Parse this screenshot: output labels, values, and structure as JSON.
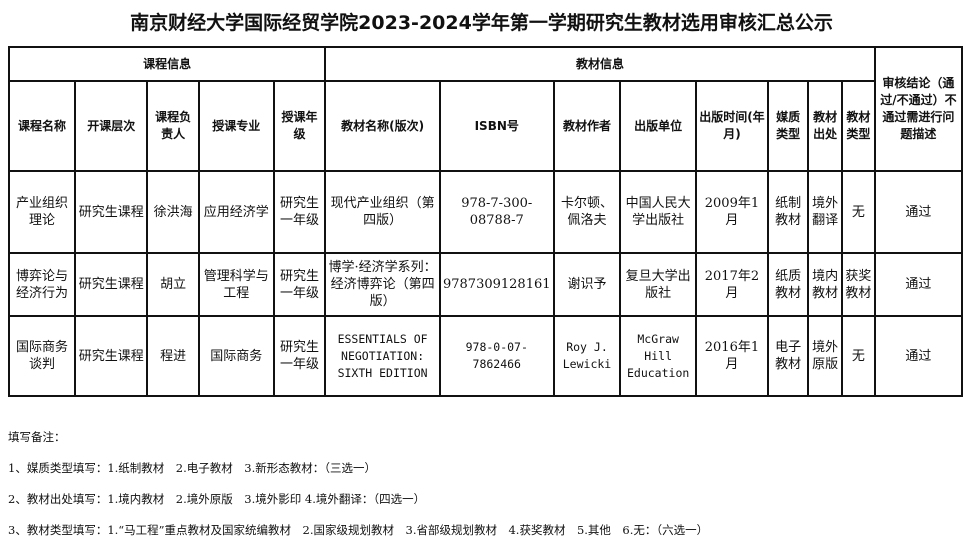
{
  "title": "南京财经大学国际经贸学院2023-2024学年第一学期研究生教材选用审核汇总公示",
  "groups": {
    "course": "课程信息",
    "textbook": "教材信息",
    "review": "审核结论（通过/不通过）不通过需进行问题描述"
  },
  "headers": [
    "课程名称",
    "开课层次",
    "课程负责人",
    "授课专业",
    "授课年级",
    "教材名称(版次)",
    "ISBN号",
    "教材作者",
    "出版单位",
    "出版时间(年月)",
    "媒质类型",
    "教材出处",
    "教材类型"
  ],
  "rows": [
    [
      "产业组织理论",
      "研究生课程",
      "徐洪海",
      "应用经济学",
      "研究生一年级",
      "现代产业组织（第四版）",
      "978-7-300-08788-7",
      "卡尔顿、佩洛夫",
      "中国人民大学出版社",
      "2009年1月",
      "纸制教材",
      "境外翻译",
      "无",
      "通过"
    ],
    [
      "博弈论与经济行为",
      "研究生课程",
      "胡立",
      "管理科学与工程",
      "研究生一年级",
      "博学·经济学系列：经济博弈论（第四版）",
      "9787309128161",
      "谢识予",
      "复旦大学出版社",
      "2017年2月",
      "纸质教材",
      "境内教材",
      "获奖教材",
      "通过"
    ],
    [
      "国际商务谈判",
      "研究生课程",
      "程进",
      "国际商务",
      "研究生一年级",
      "ESSENTIALS OF NEGOTIATION: SIXTH EDITION",
      "978-0-07-7862466",
      "Roy J. Lewicki",
      "McGraw Hill Education",
      "2016年1月",
      "电子教材",
      "境外原版",
      "无",
      "通过"
    ]
  ],
  "notes": [
    "填写备注：",
    "1、媒质类型填写：1.纸制教材　2.电子教材　3.新形态教材：（三选一）",
    "2、教材出处填写：1.境内教材　2.境外原版　3.境外影印 4.境外翻译：（四选一）",
    "3、教材类型填写：1.“马工程”重点教材及国家统编教材　2.国家级规划教材　3.省部级规划教材　4.获奖教材　5.其他　6.无：（六选一）"
  ]
}
